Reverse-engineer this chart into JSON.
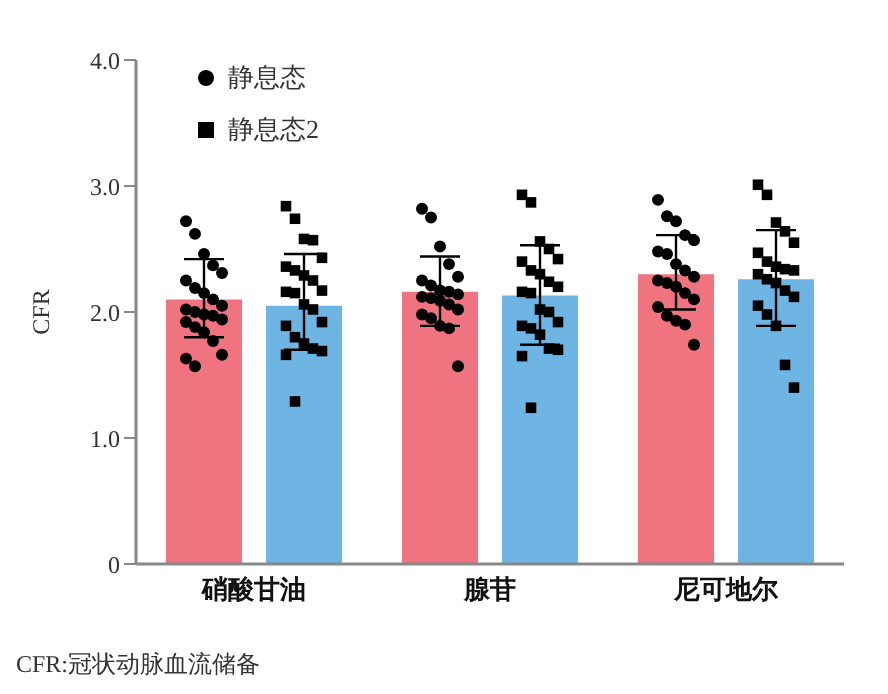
{
  "chart_data": {
    "type": "bar",
    "categories": [
      "硝酸甘油",
      "腺苷",
      "尼可地尔"
    ],
    "ylabel": "CFR",
    "ylim": [
      0,
      4
    ],
    "yticks": [
      0,
      {
        "value": 1,
        "label": "1.0"
      },
      {
        "value": 2,
        "label": "2.0"
      },
      {
        "value": 3,
        "label": "3.0"
      },
      {
        "value": 4,
        "label": "4.0"
      }
    ],
    "grid": false,
    "legend": "top left",
    "annotations": [
      "CFR:冠状动脉血流储备"
    ],
    "series": [
      {
        "color": "#ef7480",
        "values": [
          2.1,
          2.16,
          2.3
        ],
        "errors": [
          [
            1.8,
            2.42
          ],
          [
            1.89,
            2.44
          ],
          [
            2.02,
            2.61
          ]
        ]
      },
      {
        "color": "#6fb5e3",
        "values": [
          2.05,
          2.13,
          2.26
        ],
        "errors": [
          [
            1.7,
            2.46
          ],
          [
            1.74,
            2.53
          ],
          [
            1.89,
            2.65
          ]
        ]
      },
      {
        "type": "scatter",
        "name": "静息态",
        "color": "#000000",
        "marker": "circle",
        "x": [
          "硝酸甘油",
          "硝酸甘油",
          "硝酸甘油",
          "硝酸甘油",
          "硝酸甘油",
          "硝酸甘油",
          "硝酸甘油",
          "硝酸甘油",
          "硝酸甘油",
          "硝酸甘油",
          "硝酸甘油",
          "硝酸甘油",
          "硝酸甘油",
          "硝酸甘油",
          "硝酸甘油",
          "硝酸甘油",
          "硝酸甘油",
          "硝酸甘油",
          "硝酸甘油",
          "硝酸甘油",
          "硝酸甘油",
          "硝酸甘油",
          "腺苷",
          "腺苷",
          "腺苷",
          "腺苷",
          "腺苷",
          "腺苷",
          "腺苷",
          "腺苷",
          "腺苷",
          "腺苷",
          "腺苷",
          "腺苷",
          "腺苷",
          "腺苷",
          "腺苷",
          "腺苷",
          "腺苷",
          "腺苷",
          "腺苷",
          "腺苷",
          "尼可地尔",
          "尼可地尔",
          "尼可地尔",
          "尼可地尔",
          "尼可地尔",
          "尼可地尔",
          "尼可地尔",
          "尼可地尔",
          "尼可地尔",
          "尼可地尔",
          "尼可地尔",
          "尼可地尔",
          "尼可地尔",
          "尼可地尔",
          "尼可地尔",
          "尼可地尔",
          "尼可地尔",
          "尼可地尔",
          "尼可地尔",
          "尼可地尔"
        ],
        "values": [
          2.72,
          2.62,
          2.46,
          2.37,
          2.31,
          2.25,
          2.19,
          2.15,
          2.1,
          2.05,
          2.02,
          2.0,
          1.98,
          1.97,
          1.94,
          1.92,
          1.88,
          1.84,
          1.77,
          1.66,
          1.63,
          1.57,
          2.82,
          2.75,
          2.52,
          2.38,
          2.28,
          2.25,
          2.21,
          2.17,
          2.16,
          2.14,
          2.12,
          2.11,
          2.09,
          2.06,
          2.02,
          1.98,
          1.95,
          1.89,
          1.87,
          1.57,
          2.89,
          2.76,
          2.72,
          2.61,
          2.57,
          2.48,
          2.46,
          2.38,
          2.33,
          2.28,
          2.25,
          2.23,
          2.2,
          2.15,
          2.1,
          2.04,
          1.97,
          1.93,
          1.9,
          1.74
        ]
      },
      {
        "type": "scatter",
        "name": "静息态2",
        "color": "#000000",
        "marker": "square",
        "x": [
          "硝酸甘油",
          "硝酸甘油",
          "硝酸甘油",
          "硝酸甘油",
          "硝酸甘油",
          "硝酸甘油",
          "硝酸甘油",
          "硝酸甘油",
          "硝酸甘油",
          "硝酸甘油",
          "硝酸甘油",
          "硝酸甘油",
          "硝酸甘油",
          "硝酸甘油",
          "硝酸甘油",
          "硝酸甘油",
          "硝酸甘油",
          "硝酸甘油",
          "硝酸甘油",
          "硝酸甘油",
          "硝酸甘油",
          "硝酸甘油",
          "腺苷",
          "腺苷",
          "腺苷",
          "腺苷",
          "腺苷",
          "腺苷",
          "腺苷",
          "腺苷",
          "腺苷",
          "腺苷",
          "腺苷",
          "腺苷",
          "腺苷",
          "腺苷",
          "腺苷",
          "腺苷",
          "腺苷",
          "腺苷",
          "腺苷",
          "腺苷",
          "腺苷",
          "腺苷",
          "尼可地尔",
          "尼可地尔",
          "尼可地尔",
          "尼可地尔",
          "尼可地尔",
          "尼可地尔",
          "尼可地尔",
          "尼可地尔",
          "尼可地尔",
          "尼可地尔",
          "尼可地尔",
          "尼可地尔",
          "尼可地尔",
          "尼可地尔",
          "尼可地尔",
          "尼可地尔",
          "尼可地尔",
          "尼可地尔",
          "尼可地尔",
          "尼可地尔"
        ],
        "values": [
          2.84,
          2.74,
          2.58,
          2.57,
          2.43,
          2.36,
          2.33,
          2.29,
          2.25,
          2.17,
          2.16,
          2.15,
          2.06,
          2.02,
          1.92,
          1.89,
          1.8,
          1.75,
          1.71,
          1.69,
          1.66,
          1.29,
          2.93,
          2.87,
          2.56,
          2.5,
          2.42,
          2.4,
          2.33,
          2.3,
          2.24,
          2.2,
          2.16,
          2.15,
          2.02,
          2.0,
          1.92,
          1.89,
          1.87,
          1.82,
          1.71,
          1.7,
          1.65,
          1.24,
          3.01,
          2.93,
          2.71,
          2.64,
          2.55,
          2.47,
          2.4,
          2.36,
          2.34,
          2.33,
          2.3,
          2.26,
          2.23,
          2.17,
          2.12,
          2.05,
          1.98,
          1.89,
          1.58,
          1.4
        ]
      }
    ]
  }
}
